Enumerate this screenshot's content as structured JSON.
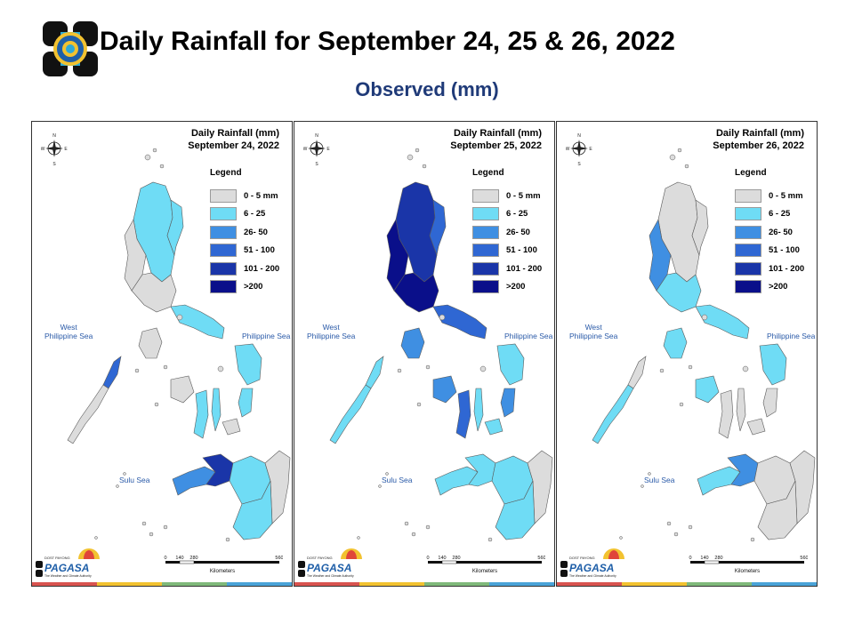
{
  "header": {
    "title": "Daily Rainfall for September 24, 25 & 26, 2022",
    "subtitle": "Observed (mm)"
  },
  "legend": {
    "title": "Legend",
    "classes": [
      {
        "label": "0 - 5 mm",
        "color": "#dcdcdc"
      },
      {
        "label": "6 - 25",
        "color": "#6fdcf5"
      },
      {
        "label": "26- 50",
        "color": "#3f8fe2"
      },
      {
        "label": "51 - 100",
        "color": "#2f67d3"
      },
      {
        "label": "101 - 200",
        "color": "#1a35a8"
      },
      {
        "label": ">200",
        "color": "#0a0f8a"
      }
    ]
  },
  "panels": [
    {
      "title_line1": "Daily Rainfall (mm)",
      "title_line2": "September 24, 2022",
      "west_sea": "West\nPhilippine Sea",
      "east_sea": "Philippine Sea",
      "sulu_sea": "Sulu Sea"
    },
    {
      "title_line1": "Daily Rainfall (mm)",
      "title_line2": "September 25, 2022",
      "west_sea": "West\nPhilippine Sea",
      "east_sea": "Philippine Sea",
      "sulu_sea": "Sulu Sea"
    },
    {
      "title_line1": "Daily Rainfall (mm)",
      "title_line2": "September 26, 2022",
      "west_sea": "West\nPhilippine Sea",
      "east_sea": "Philippine Sea",
      "sulu_sea": "Sulu Sea"
    }
  ],
  "scale": {
    "ticks": [
      "0",
      "140",
      "280",
      "560"
    ],
    "unit": "Kilometers"
  },
  "compass": {
    "n": "N",
    "s": "S",
    "e": "E",
    "w": "W"
  },
  "brand": {
    "name": "PAGASA",
    "tagline": "The Weather and Climate Authority",
    "prefix": "DOST PAYONG"
  }
}
